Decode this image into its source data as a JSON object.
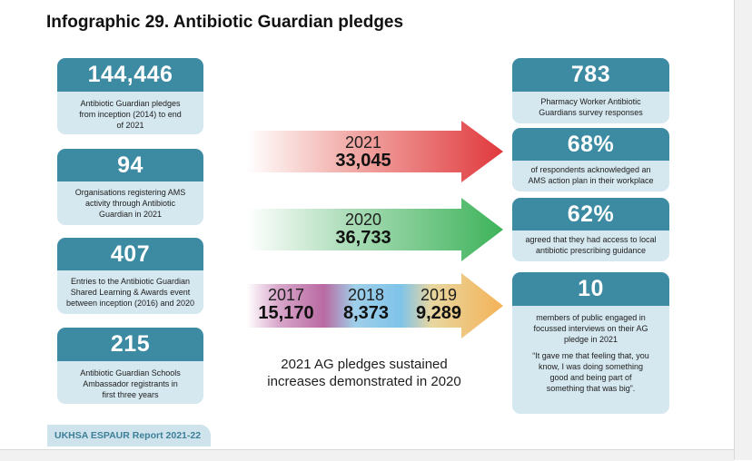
{
  "title": "Infographic 29. Antibiotic Guardian pledges",
  "left_stats": [
    {
      "value": "144,446",
      "text": "Antibiotic Guardian pledges\nfrom inception (2014) to end\nof 2021"
    },
    {
      "value": "94",
      "text": "Organisations registering AMS\nactivity through Antibiotic\nGuardian in 2021"
    },
    {
      "value": "407",
      "text": "Entries to the Antibiotic Guardian\nShared Learning & Awards event\nbetween inception (2016) and 2020"
    },
    {
      "value": "215",
      "text": "Antibiotic Guardian Schools\nAmbassador registrants in\nfirst three years"
    }
  ],
  "right_stats": [
    {
      "value": "783",
      "text": "Pharmacy Worker Antibiotic\nGuardians survey responses"
    },
    {
      "value": "68%",
      "text": "of respondents acknowledged an\nAMS action plan in their workplace"
    },
    {
      "value": "62%",
      "text": "agreed that they had access to local\nantibiotic prescribing guidance"
    },
    {
      "value": "10",
      "text": "members of public engaged in\nfocussed interviews on their AG\npledge in 2021",
      "quote": "“It gave me that feeling that, you\nknow, I was doing something\ngood and being part of\nsomething that was big”."
    }
  ],
  "arrows": [
    {
      "year": "2021",
      "count": "33,045",
      "color": "#e0393d"
    },
    {
      "year": "2020",
      "count": "36,733",
      "color": "#3db35a"
    },
    {
      "years": [
        {
          "year": "2017",
          "count": "15,170"
        },
        {
          "year": "2018",
          "count": "8,373"
        },
        {
          "year": "2019",
          "count": "9,289"
        }
      ]
    }
  ],
  "caption": "2021 AG pledges sustained\nincreases demonstrated in 2020",
  "footer": "UKHSA ESPAUR Report 2021-22"
}
